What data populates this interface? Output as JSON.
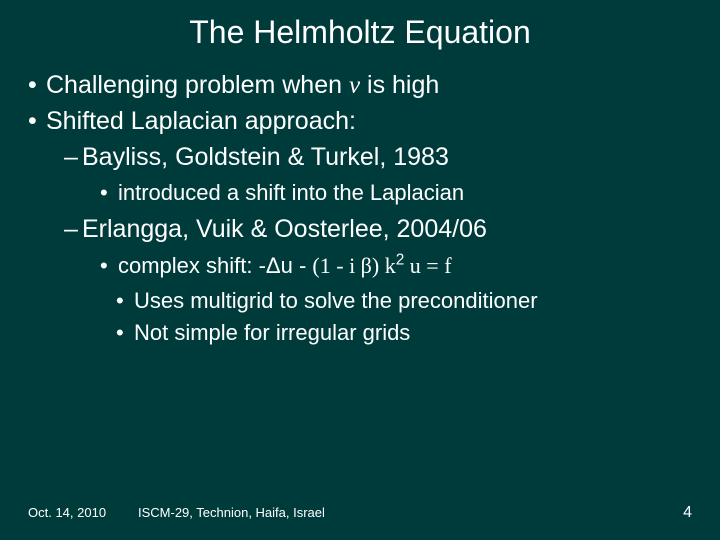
{
  "colors": {
    "background": "#003b3b",
    "text": "#ffffff"
  },
  "title": "The Helmholtz Equation",
  "b1": "Challenging problem when ",
  "b1_var": "ν",
  "b1_tail": " is high",
  "b2": "Shifted Laplacian approach:",
  "b2_1": "Bayliss, Goldstein & Turkel, 1983",
  "b2_1_1": "introduced a shift into the Laplacian",
  "b2_2": "Erlangga, Vuik & Oosterlee, 2004/06",
  "b2_2_1_pre": "complex shift:  -Δu - ",
  "b2_2_1_paren": "(1 - i β)",
  "b2_2_1_k": " k",
  "b2_2_1_sup": "2",
  "b2_2_1_tail": " u = f",
  "b2_2_2": "Uses multigrid to solve the preconditioner",
  "b2_2_3": "Not simple for irregular grids",
  "footer": {
    "date": "Oct. 14, 2010",
    "venue": "ISCM-29, Technion, Haifa, Israel",
    "page": "4"
  }
}
